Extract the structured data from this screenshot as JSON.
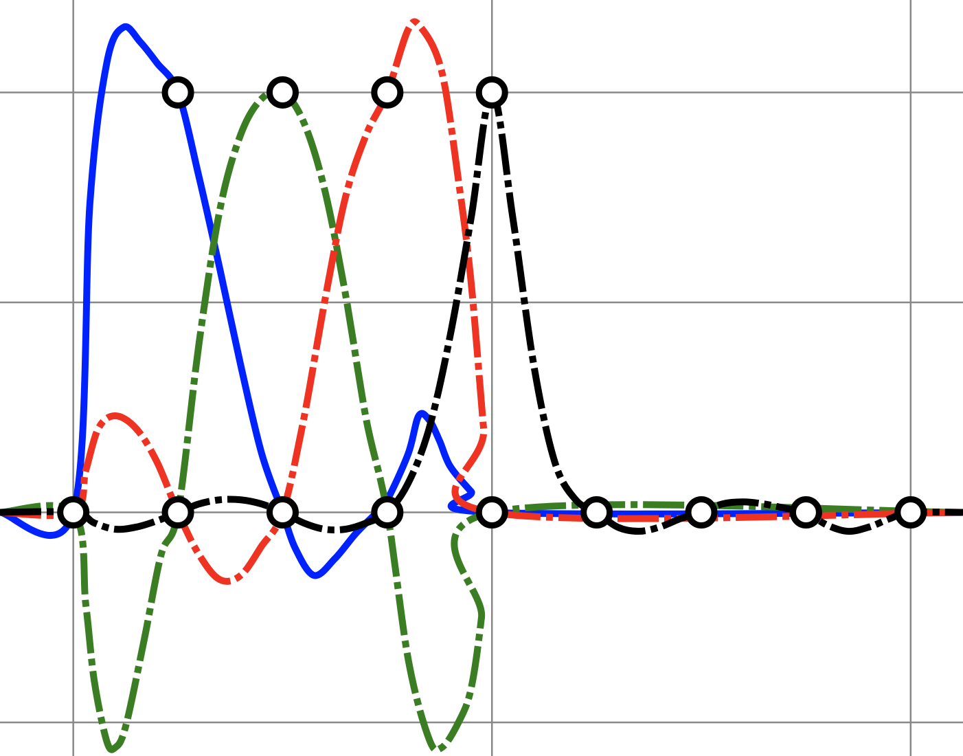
{
  "chart_data": {
    "type": "line",
    "title": "",
    "xlabel": "",
    "ylabel": "",
    "xlim": [
      -0.175,
      2.125
    ],
    "ylim": [
      -0.58,
      1.22
    ],
    "grid": true,
    "x_gridlines": [
      0,
      1,
      2
    ],
    "y_gridlines": [
      -0.5,
      0,
      0.5,
      1
    ],
    "knots": [
      0,
      0.25,
      0.5,
      0.75,
      1,
      1.25,
      1.5,
      1.75,
      2
    ],
    "interpolation_nodes": [
      {
        "x": 0.25,
        "y": 1
      },
      {
        "x": 0.5,
        "y": 1
      },
      {
        "x": 0.75,
        "y": 1
      },
      {
        "x": 1.0,
        "y": 1
      }
    ],
    "colors": {
      "blue": "#0022ff",
      "green": "#3a7d23",
      "red": "#ee3322",
      "black": "#000000",
      "grid": "#888888"
    },
    "series": [
      {
        "color": "#0022ff",
        "style": "solid",
        "points": [
          [
            -0.175,
            0
          ],
          [
            0,
            0
          ],
          [
            0.04,
            0.74
          ],
          [
            0.08,
            1.07
          ],
          [
            0.12,
            1.155
          ],
          [
            0.16,
            1.12
          ],
          [
            0.2,
            1.07
          ],
          [
            0.25,
            1.0
          ],
          [
            0.3,
            0.8
          ],
          [
            0.35,
            0.58
          ],
          [
            0.4,
            0.35
          ],
          [
            0.45,
            0.14
          ],
          [
            0.5,
            0
          ],
          [
            0.53,
            -0.085
          ],
          [
            0.575,
            -0.15
          ],
          [
            0.625,
            -0.11
          ],
          [
            0.675,
            -0.05
          ],
          [
            0.725,
            0
          ],
          [
            0.75,
            0.03
          ],
          [
            0.8,
            0.14
          ],
          [
            0.825,
            0.23
          ],
          [
            0.85,
            0.22
          ],
          [
            0.875,
            0.17
          ],
          [
            0.9,
            0.11
          ],
          [
            0.95,
            0.05
          ],
          [
            1.0,
            0
          ],
          [
            2.125,
            0
          ]
        ]
      },
      {
        "color": "#3a7d23",
        "style": "dashdot",
        "points": [
          [
            -0.175,
            0
          ],
          [
            0,
            0
          ],
          [
            0.03,
            -0.22
          ],
          [
            0.05,
            -0.4
          ],
          [
            0.08,
            -0.545
          ],
          [
            0.1,
            -0.56
          ],
          [
            0.125,
            -0.51
          ],
          [
            0.17,
            -0.3
          ],
          [
            0.21,
            -0.1
          ],
          [
            0.25,
            0
          ],
          [
            0.3,
            0.4
          ],
          [
            0.35,
            0.72
          ],
          [
            0.4,
            0.9
          ],
          [
            0.45,
            0.985
          ],
          [
            0.5,
            1.0
          ],
          [
            0.55,
            0.93
          ],
          [
            0.6,
            0.77
          ],
          [
            0.65,
            0.52
          ],
          [
            0.7,
            0.22
          ],
          [
            0.75,
            0
          ],
          [
            0.8,
            -0.35
          ],
          [
            0.85,
            -0.54
          ],
          [
            0.88,
            -0.56
          ],
          [
            0.92,
            -0.5
          ],
          [
            0.95,
            -0.42
          ],
          [
            0.975,
            -0.25
          ],
          [
            1.0,
            0
          ],
          [
            2.125,
            0
          ]
        ]
      },
      {
        "color": "#ee3322",
        "style": "dashdot",
        "points": [
          [
            -0.175,
            0
          ],
          [
            0,
            0
          ],
          [
            0.03,
            0.1
          ],
          [
            0.06,
            0.2
          ],
          [
            0.1,
            0.23
          ],
          [
            0.15,
            0.2
          ],
          [
            0.2,
            0.12
          ],
          [
            0.25,
            0
          ],
          [
            0.3,
            -0.1
          ],
          [
            0.35,
            -0.16
          ],
          [
            0.4,
            -0.15
          ],
          [
            0.45,
            -0.08
          ],
          [
            0.5,
            0
          ],
          [
            0.55,
            0.22
          ],
          [
            0.6,
            0.5
          ],
          [
            0.65,
            0.75
          ],
          [
            0.7,
            0.9
          ],
          [
            0.75,
            1.0
          ],
          [
            0.8,
            1.15
          ],
          [
            0.83,
            1.155
          ],
          [
            0.88,
            1.05
          ],
          [
            0.92,
            0.79
          ],
          [
            0.95,
            0.55
          ],
          [
            0.98,
            0.2
          ],
          [
            1.0,
            0
          ],
          [
            2.125,
            0
          ]
        ]
      },
      {
        "color": "#000000",
        "style": "dashdot",
        "points": [
          [
            -0.175,
            0
          ],
          [
            0,
            0
          ],
          [
            0.05,
            -0.025
          ],
          [
            0.1,
            -0.04
          ],
          [
            0.15,
            -0.035
          ],
          [
            0.2,
            -0.02
          ],
          [
            0.25,
            0
          ],
          [
            0.3,
            0.02
          ],
          [
            0.35,
            0.03
          ],
          [
            0.4,
            0.03
          ],
          [
            0.45,
            0.02
          ],
          [
            0.5,
            0
          ],
          [
            0.55,
            -0.025
          ],
          [
            0.6,
            -0.04
          ],
          [
            0.65,
            -0.04
          ],
          [
            0.7,
            -0.025
          ],
          [
            0.75,
            0
          ],
          [
            0.8,
            0.07
          ],
          [
            0.85,
            0.2
          ],
          [
            0.9,
            0.42
          ],
          [
            0.95,
            0.7
          ],
          [
            1.0,
            1.0
          ],
          [
            1.05,
            0.7
          ],
          [
            1.1,
            0.35
          ],
          [
            1.15,
            0.12
          ],
          [
            1.2,
            0.03
          ],
          [
            1.25,
            0
          ],
          [
            1.3,
            -0.035
          ],
          [
            1.35,
            -0.045
          ],
          [
            1.4,
            -0.035
          ],
          [
            1.45,
            -0.015
          ],
          [
            1.5,
            0
          ],
          [
            1.55,
            0.02
          ],
          [
            1.6,
            0.025
          ],
          [
            1.65,
            0.02
          ],
          [
            1.7,
            0.01
          ],
          [
            1.75,
            0
          ],
          [
            1.8,
            -0.03
          ],
          [
            1.85,
            -0.045
          ],
          [
            1.9,
            -0.035
          ],
          [
            1.95,
            -0.015
          ],
          [
            2.0,
            0
          ],
          [
            2.125,
            0
          ]
        ]
      }
    ]
  }
}
